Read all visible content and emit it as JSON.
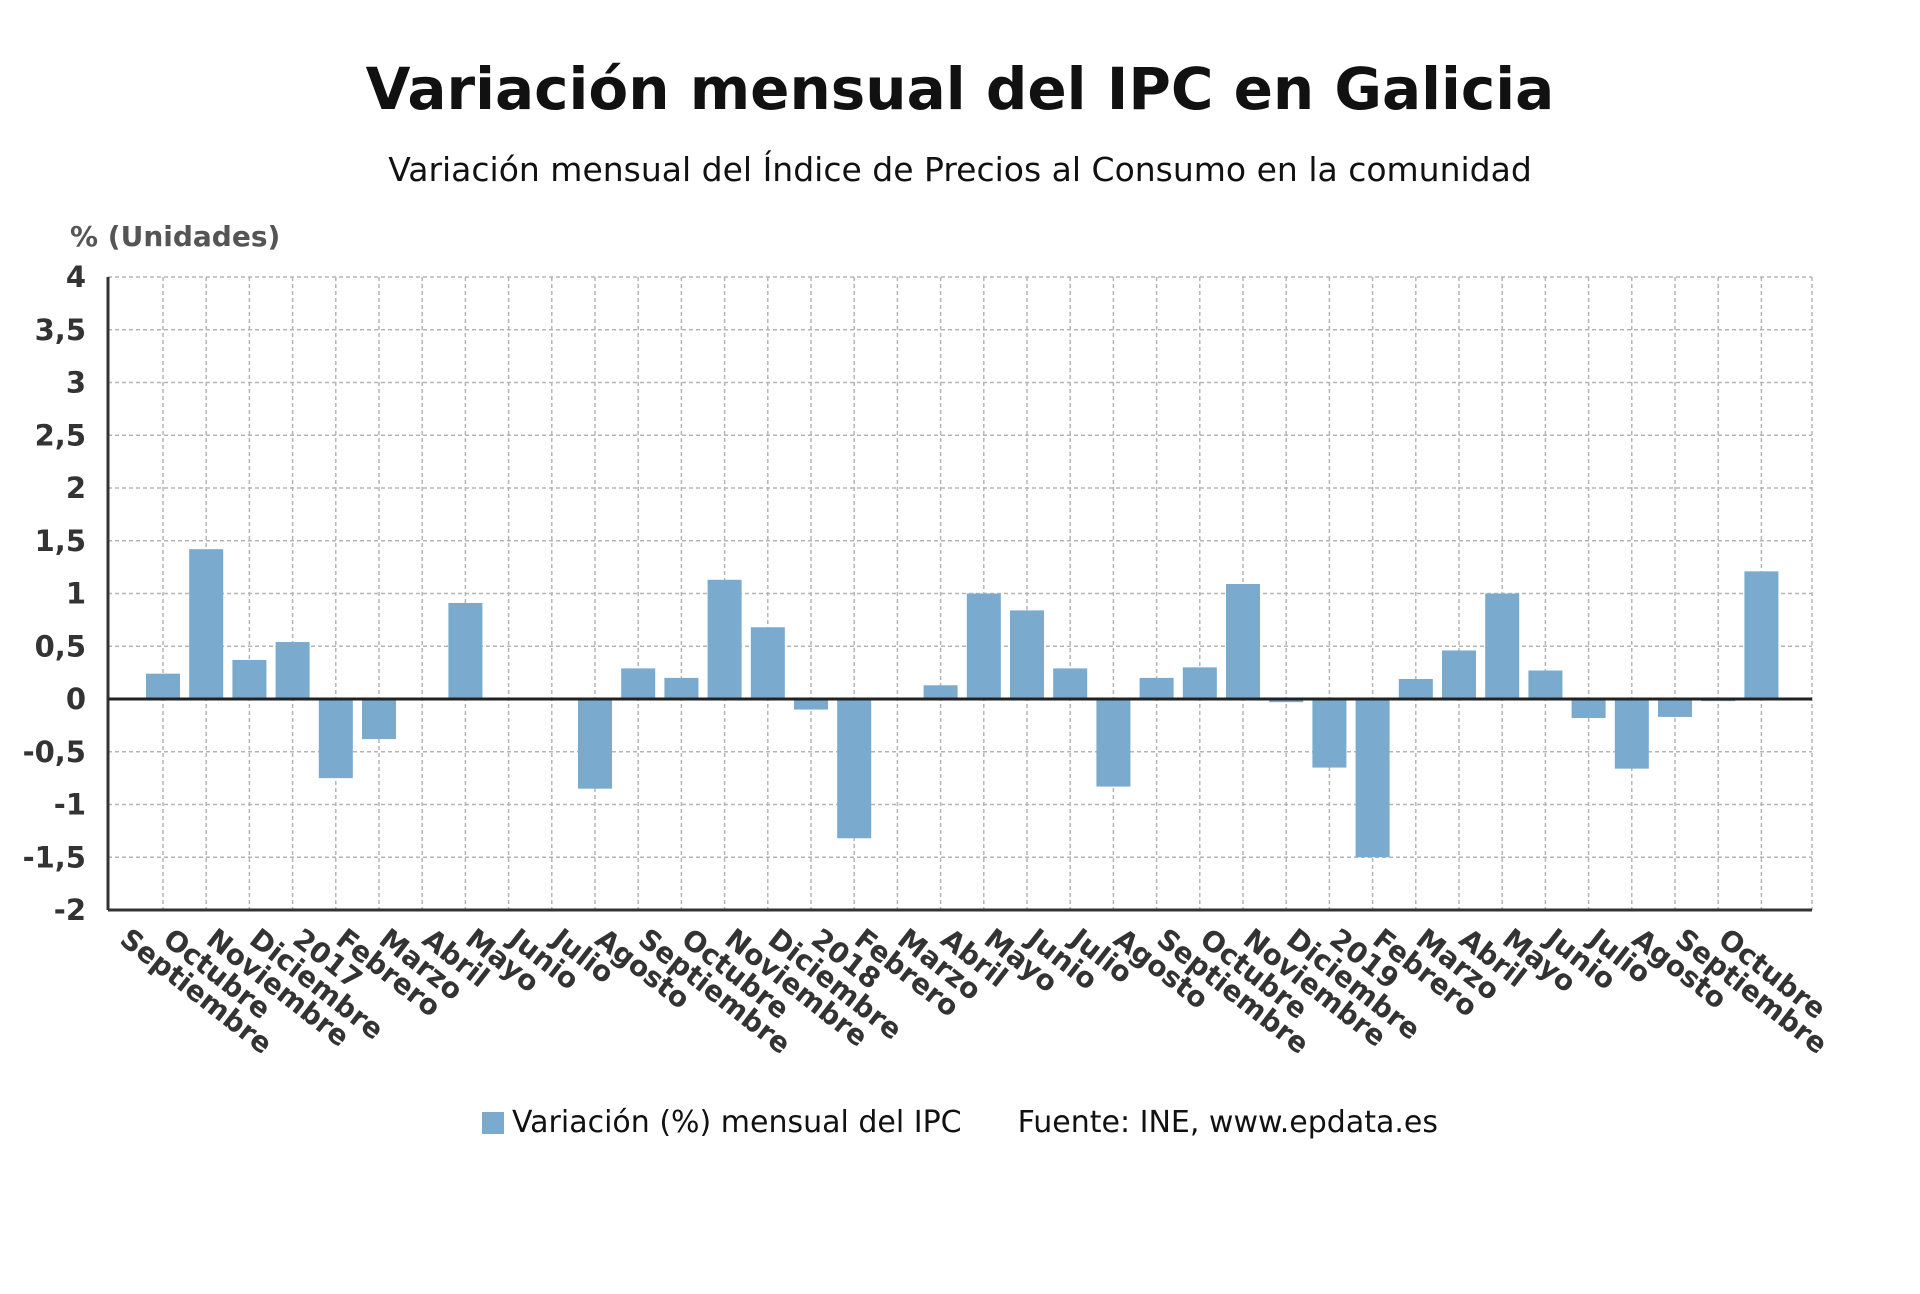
{
  "title": "Variación mensual del IPC en Galicia",
  "subtitle": "Variación mensual del Índice de Precios al Consumo en la comunidad",
  "source": "Fuente: INE, www.epdata.es",
  "colors": {
    "bar": "#7aaacd",
    "grid": "#b5b5b5",
    "axis": "#333333"
  },
  "chart_data": {
    "type": "bar",
    "ylabel": "% (Unidades)",
    "ylim": [
      -2,
      4
    ],
    "yticks": [
      "4",
      "3,5",
      "3",
      "2,5",
      "2",
      "1,5",
      "1",
      "0,5",
      "0",
      "-0,5",
      "-1",
      "-1,5",
      "-2"
    ],
    "grid": true,
    "legend_position": "bottom",
    "categories": [
      "Septiembre",
      "Octubre",
      "Noviembre",
      "Diciembre",
      "2017",
      "Febrero",
      "Marzo",
      "Abril",
      "Mayo",
      "Junio",
      "Julio",
      "Agosto",
      "Septiembre",
      "Octubre",
      "Noviembre",
      "Diciembre",
      "2018",
      "Febrero",
      "Marzo",
      "Abril",
      "Mayo",
      "Junio",
      "Julio",
      "Agosto",
      "Septiembre",
      "Octubre",
      "Noviembre",
      "Diciembre",
      "2019",
      "Febrero",
      "Marzo",
      "Abril",
      "Mayo",
      "Junio",
      "Julio",
      "Agosto",
      "Septiembre",
      "Octubre"
    ],
    "series": [
      {
        "name": "Variación (%) mensual del IPC",
        "values": [
          0.24,
          1.42,
          0.37,
          0.54,
          -0.75,
          -0.38,
          0.0,
          0.91,
          0.0,
          0.0,
          -0.85,
          0.29,
          0.2,
          1.13,
          0.68,
          -0.1,
          -1.32,
          0.0,
          0.13,
          1.0,
          0.84,
          0.29,
          -0.83,
          0.2,
          0.3,
          1.09,
          -0.03,
          -0.65,
          -1.5,
          0.19,
          0.46,
          1.0,
          0.27,
          -0.18,
          -0.66,
          -0.17,
          -0.02,
          1.21
        ]
      }
    ]
  }
}
